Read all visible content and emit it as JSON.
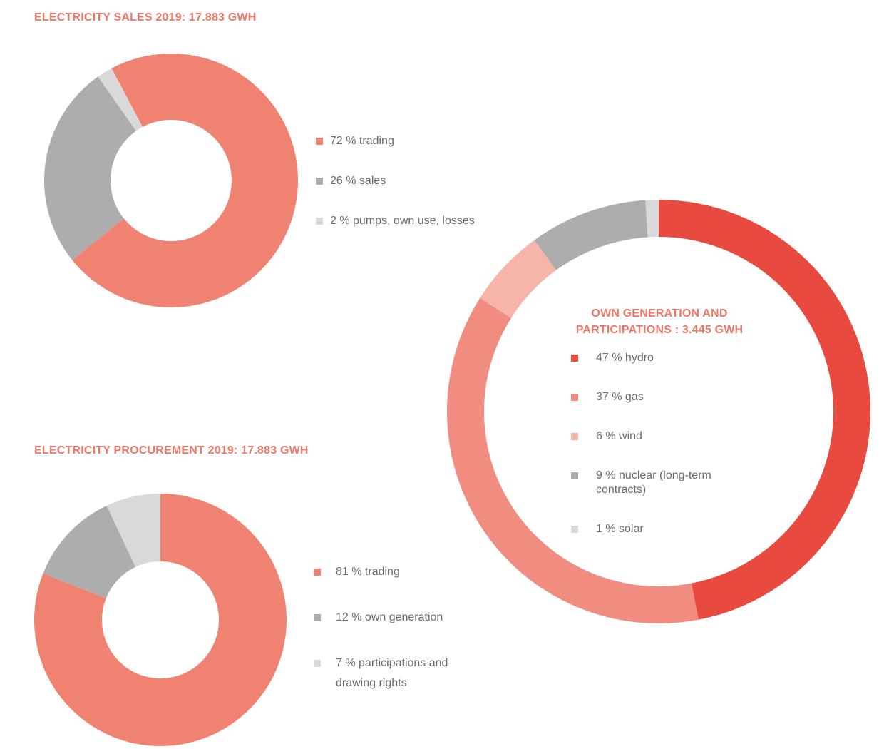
{
  "colors": {
    "trading": "#f08272",
    "sales_grey": "#adadad",
    "light_grey": "#d9d9d9",
    "hydro": "#e84a40",
    "gas": "#f18c80",
    "wind": "#f7b5a9",
    "title": "#ee7766"
  },
  "chart_data": [
    {
      "id": "sales",
      "type": "pie",
      "title": "ELECTRICITY SALES 2019: 17.883 GWH",
      "donut": true,
      "start_angle_deg": -28,
      "slices": [
        {
          "key": "trading",
          "value": 72,
          "label": "72 % trading",
          "color": "#f08272"
        },
        {
          "key": "sales",
          "value": 26,
          "label": "26 % sales",
          "color": "#adadad"
        },
        {
          "key": "pumps",
          "value": 2,
          "label": "2 % pumps, own use, losses",
          "color": "#d9d9d9"
        }
      ],
      "legend_position": "right"
    },
    {
      "id": "procurement",
      "type": "pie",
      "title": "ELECTRICITY PROCUREMENT 2019: 17.883 GWH",
      "donut": true,
      "start_angle_deg": 0,
      "slices": [
        {
          "key": "trading",
          "value": 81,
          "label": "81 % trading",
          "color": "#f08272"
        },
        {
          "key": "own_generation",
          "value": 12,
          "label": "12 % own generation",
          "color": "#adadad"
        },
        {
          "key": "participations",
          "value": 7,
          "label": "7 % participations and drawing rights",
          "color": "#d9d9d9"
        }
      ],
      "legend_position": "right"
    },
    {
      "id": "generation",
      "type": "pie",
      "title": "OWN GENERATION AND PARTICIPATIONS : 3.445 GWH",
      "donut": true,
      "start_angle_deg": 0,
      "slices": [
        {
          "key": "hydro",
          "value": 47,
          "label": "47 % hydro",
          "color": "#e84a40"
        },
        {
          "key": "gas",
          "value": 37,
          "label": "37 % gas",
          "color": "#f18c80"
        },
        {
          "key": "wind",
          "value": 6,
          "label": "6 % wind",
          "color": "#f7b5a9"
        },
        {
          "key": "nuclear",
          "value": 9,
          "label": "9 % nuclear (long-term contracts)",
          "color": "#adadad"
        },
        {
          "key": "solar",
          "value": 1,
          "label": "1 % solar",
          "color": "#d9d9d9"
        }
      ],
      "legend_position": "inside"
    }
  ]
}
